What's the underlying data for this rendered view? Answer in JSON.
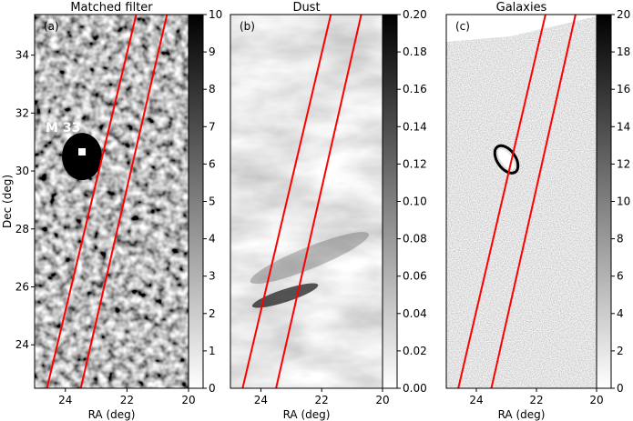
{
  "chart_data": [
    {
      "type": "heatmap",
      "title": "Matched filter",
      "panel_label": "(a)",
      "xlabel": "RA (deg)",
      "ylabel": "Dec (deg)",
      "xlim": [
        25,
        20
      ],
      "ylim": [
        22.5,
        35.4
      ],
      "xticks": [
        24,
        22,
        20
      ],
      "yticks": [
        24,
        26,
        28,
        30,
        32,
        34
      ],
      "colorbar": {
        "min": 0,
        "max": 10,
        "ticks": [
          0,
          1,
          2,
          3,
          4,
          5,
          6,
          7,
          8,
          9,
          10
        ]
      },
      "annotations": [
        {
          "text": "M 33",
          "ra": 23.46,
          "dec": 30.66
        }
      ],
      "stream_lines": [
        {
          "ra": [
            24.6,
            21.7
          ],
          "dec": [
            22.5,
            35.4
          ]
        },
        {
          "ra": [
            23.5,
            20.7
          ],
          "dec": [
            22.5,
            35.4
          ]
        }
      ]
    },
    {
      "type": "heatmap",
      "title": "Dust",
      "panel_label": "(b)",
      "xlabel": "RA (deg)",
      "xlim": [
        25,
        20
      ],
      "ylim": [
        22.5,
        35.4
      ],
      "xticks": [
        24,
        22,
        20
      ],
      "colorbar": {
        "min": 0.0,
        "max": 0.2,
        "ticks": [
          "0.00",
          "0.02",
          "0.04",
          "0.06",
          "0.08",
          "0.10",
          "0.12",
          "0.14",
          "0.16",
          "0.18",
          "0.20"
        ]
      },
      "stream_lines": [
        {
          "ra": [
            24.6,
            21.7
          ],
          "dec": [
            22.5,
            35.4
          ]
        },
        {
          "ra": [
            23.5,
            20.7
          ],
          "dec": [
            22.5,
            35.4
          ]
        }
      ]
    },
    {
      "type": "heatmap",
      "title": "Galaxies",
      "panel_label": "(c)",
      "xlabel": "RA (deg)",
      "xlim": [
        25,
        20
      ],
      "ylim": [
        22.5,
        35.4
      ],
      "xticks": [
        24,
        22,
        20
      ],
      "colorbar": {
        "min": 0,
        "max": 20,
        "ticks": [
          0,
          2,
          4,
          6,
          8,
          10,
          12,
          14,
          16,
          18,
          20
        ]
      },
      "stream_lines": [
        {
          "ra": [
            24.6,
            21.7
          ],
          "dec": [
            22.5,
            35.4
          ]
        },
        {
          "ra": [
            23.5,
            20.7
          ],
          "dec": [
            22.5,
            35.4
          ]
        }
      ]
    }
  ],
  "colors": {
    "stream_line": "#ff0000",
    "axis": "#000000"
  }
}
